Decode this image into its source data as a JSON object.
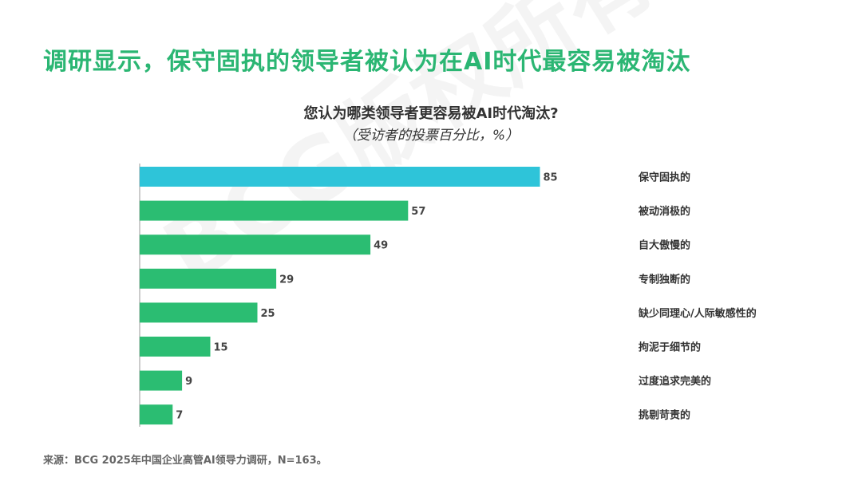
{
  "page": {
    "title": "调研显示，保守固执的领导者被认为在AI时代最容易被淘汰",
    "source": "来源：BCG 2025年中国企业高管AI领导力调研，N=163。",
    "watermark": "BCG版权所有"
  },
  "colors": {
    "title_green": "#2bb673",
    "bar_green": "#2bbd72",
    "bar_highlight": "#2ec4d9",
    "axis": "#999999"
  },
  "chart_data": {
    "type": "bar",
    "orientation": "horizontal",
    "title": "您认为哪类领导者更容易被AI时代淘汰?",
    "subtitle": "（受访者的投票百分比，%）",
    "categories": [
      "保守固执的",
      "被动消极的",
      "自大傲慢的",
      "专制独断的",
      "缺少同理心/人际敏感性的",
      "拘泥于细节的",
      "过度追求完美的",
      "挑剔苛责的"
    ],
    "values": [
      85,
      57,
      49,
      29,
      25,
      15,
      9,
      7
    ],
    "highlight_index": 0,
    "xlim": [
      0,
      100
    ],
    "grid": false,
    "legend": "none"
  }
}
